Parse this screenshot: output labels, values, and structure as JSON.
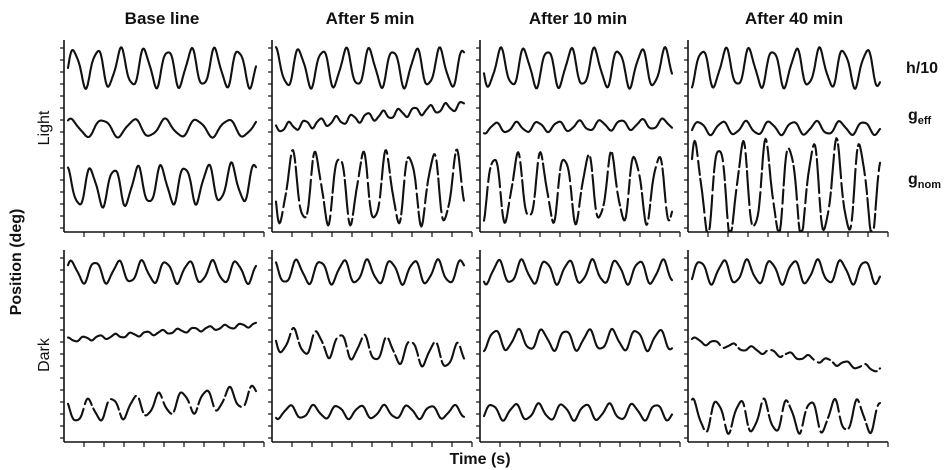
{
  "figure": {
    "column_titles": [
      "Base line",
      "After 5 min",
      "After 10 min",
      "After 40 min"
    ],
    "row_labels": [
      "Light",
      "Dark"
    ],
    "trace_labels": [
      {
        "main": "h/10",
        "sub": ""
      },
      {
        "main": "g",
        "sub": "eff"
      },
      {
        "main": "g",
        "sub": "nom"
      }
    ],
    "y_axis_title": "Position (deg)",
    "x_axis_title": "Time (s)"
  },
  "chart_data": {
    "type": "line",
    "title": "",
    "xlabel": "Time (s)",
    "ylabel": "Position (deg)",
    "columns": [
      "Base line",
      "After 5 min",
      "After 10 min",
      "After 40 min"
    ],
    "rows": [
      "Light",
      "Dark"
    ],
    "grid": false,
    "panels": [
      {
        "row": "Light",
        "column": "Base line",
        "traces": [
          {
            "name": "h/10",
            "cycles": 8,
            "amplitude": 2.6,
            "offset": 0,
            "drift": 0,
            "dashed": false
          },
          {
            "name": "g_eff",
            "cycles": 6,
            "amplitude": 1.2,
            "offset": 0,
            "drift": 0,
            "dashed": false
          },
          {
            "name": "g_nom",
            "cycles": 8,
            "amplitude": 2.6,
            "offset": 0,
            "drift": 0.8,
            "dashed": false
          }
        ]
      },
      {
        "row": "Light",
        "column": "After 5 min",
        "traces": [
          {
            "name": "h/10",
            "cycles": 8,
            "amplitude": 2.6,
            "offset": 0,
            "drift": 0,
            "dashed": false
          },
          {
            "name": "g_eff",
            "cycles": 12,
            "amplitude": 0.6,
            "offset": 0,
            "drift": 3.2,
            "dashed": false
          },
          {
            "name": "g_nom",
            "cycles": 8,
            "amplitude": 4.8,
            "offset": 0,
            "drift": 0,
            "dashed": true
          }
        ]
      },
      {
        "row": "Light",
        "column": "After 10 min",
        "traces": [
          {
            "name": "h/10",
            "cycles": 8,
            "amplitude": 2.6,
            "offset": 0,
            "drift": 0,
            "dashed": false
          },
          {
            "name": "g_eff",
            "cycles": 9,
            "amplitude": 0.7,
            "offset": 0,
            "drift": 0.6,
            "dashed": false
          },
          {
            "name": "g_nom",
            "cycles": 8,
            "amplitude": 4.6,
            "offset": 0,
            "drift": 0,
            "dashed": true
          }
        ]
      },
      {
        "row": "Light",
        "column": "After 40 min",
        "traces": [
          {
            "name": "h/10",
            "cycles": 8,
            "amplitude": 2.6,
            "offset": 0,
            "drift": 0,
            "dashed": false
          },
          {
            "name": "g_eff",
            "cycles": 8,
            "amplitude": 0.9,
            "offset": 0,
            "drift": 0,
            "dashed": false
          },
          {
            "name": "g_nom",
            "cycles": 8,
            "amplitude": 6.2,
            "offset": 0,
            "drift": 0,
            "dashed": true
          }
        ]
      },
      {
        "row": "Dark",
        "column": "Base line",
        "traces": [
          {
            "name": "h/10",
            "cycles": 8,
            "amplitude": 1.5,
            "offset": 0,
            "drift": 0,
            "dashed": false
          },
          {
            "name": "g_eff",
            "cycles": 12,
            "amplitude": 0.3,
            "offset": 0,
            "drift": 2.2,
            "dashed": false
          },
          {
            "name": "g_nom",
            "cycles": 8,
            "amplitude": 1.5,
            "offset": 0,
            "drift": 2.2,
            "dashed": true
          }
        ]
      },
      {
        "row": "Dark",
        "column": "After 5 min",
        "traces": [
          {
            "name": "h/10",
            "cycles": 8,
            "amplitude": 1.6,
            "offset": 0,
            "drift": 0,
            "dashed": false
          },
          {
            "name": "g_eff",
            "cycles": 8,
            "amplitude": 1.7,
            "offset": 0,
            "drift": -2.4,
            "dashed": true
          },
          {
            "name": "g_nom",
            "cycles": 8,
            "amplitude": 0.9,
            "offset": 0,
            "drift": 0,
            "dashed": false
          }
        ]
      },
      {
        "row": "Dark",
        "column": "After 10 min",
        "traces": [
          {
            "name": "h/10",
            "cycles": 8,
            "amplitude": 1.6,
            "offset": 0,
            "drift": 0,
            "dashed": false
          },
          {
            "name": "g_eff",
            "cycles": 8,
            "amplitude": 1.4,
            "offset": 0,
            "drift": 0,
            "dashed": false
          },
          {
            "name": "g_nom",
            "cycles": 8,
            "amplitude": 1.1,
            "offset": 0,
            "drift": 0,
            "dashed": false
          }
        ]
      },
      {
        "row": "Dark",
        "column": "After 40 min",
        "traces": [
          {
            "name": "h/10",
            "cycles": 8,
            "amplitude": 1.6,
            "offset": 0,
            "drift": 0,
            "dashed": false
          },
          {
            "name": "g_eff",
            "cycles": 10,
            "amplitude": 0.4,
            "offset": 0,
            "drift": -4.2,
            "dashed": true
          },
          {
            "name": "g_nom",
            "cycles": 8,
            "amplitude": 2.2,
            "offset": -0.6,
            "drift": 0,
            "dashed": true
          }
        ]
      }
    ]
  }
}
